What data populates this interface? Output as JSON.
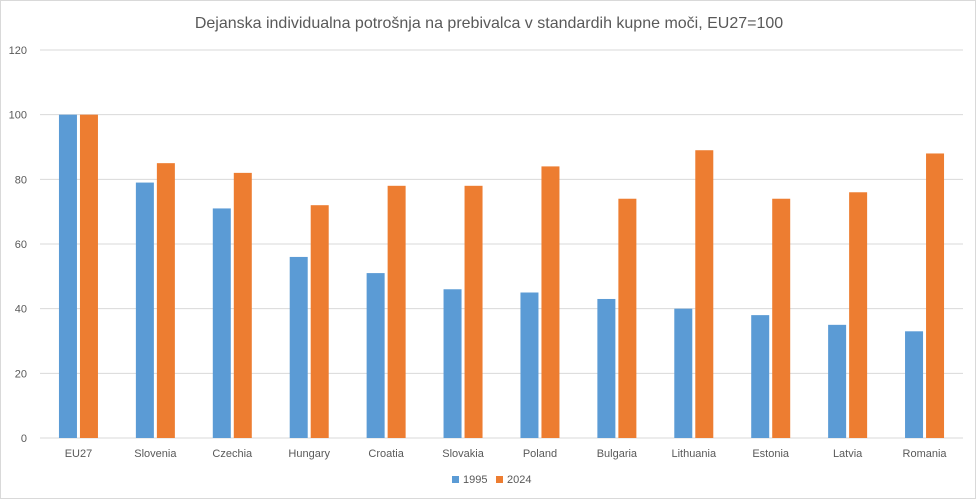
{
  "chart_data": {
    "type": "bar",
    "title": "Dejanska individualna potrošnja na prebivalca v standardih kupne moči, EU27=100",
    "categories": [
      "EU27",
      "Slovenia",
      "Czechia",
      "Hungary",
      "Croatia",
      "Slovakia",
      "Poland",
      "Bulgaria",
      "Lithuania",
      "Estonia",
      "Latvia",
      "Romania"
    ],
    "series": [
      {
        "name": "1995",
        "color": "#5b9bd5",
        "values": [
          100,
          79,
          71,
          56,
          51,
          46,
          45,
          43,
          40,
          38,
          35,
          33
        ]
      },
      {
        "name": "2024",
        "color": "#ed7d31",
        "values": [
          100,
          85,
          82,
          72,
          78,
          78,
          84,
          74,
          89,
          74,
          76,
          88
        ]
      }
    ],
    "ylim": [
      0,
      120
    ],
    "yticks": [
      "0",
      "20",
      "40",
      "60",
      "80",
      "100",
      "120"
    ],
    "grid": true,
    "legend_position": "bottom"
  }
}
